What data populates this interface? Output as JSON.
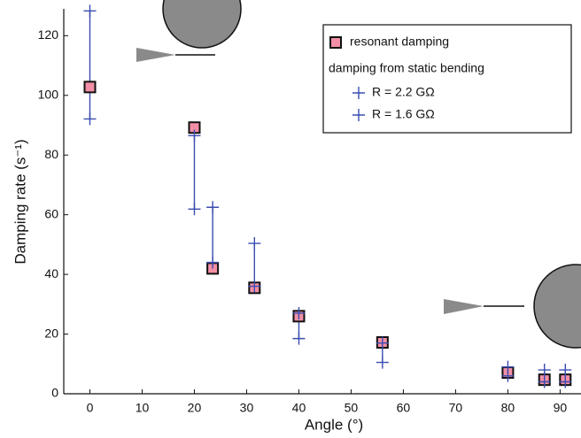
{
  "chart_data": {
    "type": "scatter",
    "x_label": "Angle (°)",
    "y_label": "Damping rate (s⁻¹)",
    "xlim": [
      -5,
      94
    ],
    "ylim": [
      0,
      129
    ],
    "xticks": [
      0,
      10,
      20,
      30,
      40,
      50,
      60,
      70,
      80,
      90
    ],
    "yticks": [
      0,
      20,
      40,
      60,
      80,
      100,
      120
    ],
    "grid": false,
    "legend_position": "upper right",
    "legend_subtitle": "damping from static bending",
    "series": [
      {
        "name": "resonant damping",
        "color": "#f28fa6",
        "marker": "square",
        "x": [
          0,
          20,
          23.5,
          31.5,
          40,
          56,
          80,
          87,
          91
        ],
        "values": [
          102.8,
          89.2,
          42,
          35.5,
          26,
          17.2,
          7.1,
          4.7,
          4.7
        ]
      },
      {
        "name": "R = 2.2 GΩ",
        "color": "#3a4db0",
        "marker": "cross",
        "x": [
          0,
          20,
          23.5,
          31.5,
          40,
          56,
          80,
          87,
          91
        ],
        "values": [
          128.3,
          86.5,
          62.5,
          50.4,
          27,
          17,
          9,
          8,
          8
        ]
      },
      {
        "name": "R = 1.6 GΩ",
        "color": "#3a4db0",
        "marker": "cross",
        "x": [
          0,
          20,
          23.5,
          31.5,
          40,
          56,
          80,
          87,
          91
        ],
        "values": [
          92.1,
          61.9,
          44,
          36,
          18.5,
          10.5,
          6,
          4,
          4
        ]
      }
    ]
  }
}
